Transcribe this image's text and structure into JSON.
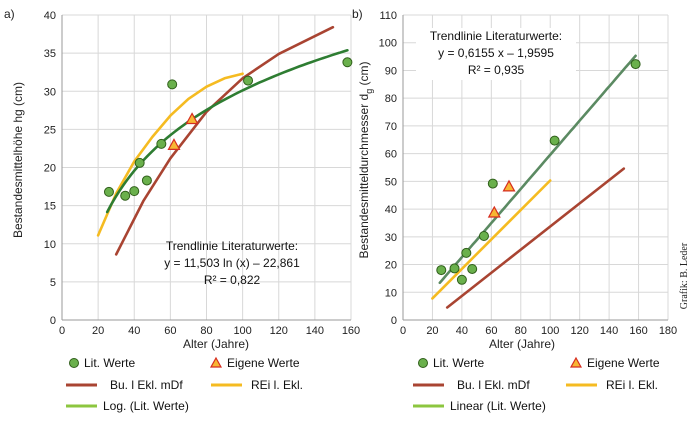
{
  "credit": "Grafik: B. Leder",
  "legend": {
    "lit": "Lit. Werte",
    "eigene": "Eigene Werte",
    "bu": "Bu. l Ekl. mDf",
    "rei": "REi l. Ekl.",
    "log": "Log. (Lit. Werte)",
    "linear": "Linear (Lit. Werte)"
  },
  "colors": {
    "lit_fill": "#6ab04c",
    "lit_stroke": "#2f5e1a",
    "eigene_fill": "#f7b733",
    "eigene_stroke": "#d62d20",
    "bu": "#a94432",
    "rei": "#f5bb21",
    "fit": "#2e7d32",
    "fit_legend": "#8cc63f",
    "fit_b": "#5b8a62",
    "grid": "#d8d8d8"
  },
  "chart_data": [
    {
      "panel": "a)",
      "type": "scatter",
      "xlabel": "Alter (Jahre)",
      "ylabel": "Bestandesmittelhöhe hg (cm)",
      "xlim": [
        0,
        160
      ],
      "ylim": [
        0,
        40
      ],
      "xticks": [
        "0",
        "20",
        "40",
        "60",
        "80",
        "100",
        "120",
        "140",
        "160"
      ],
      "yticks": [
        "0",
        "5",
        "10",
        "15",
        "20",
        "25",
        "30",
        "35",
        "40"
      ],
      "grid": true,
      "trendline_text": [
        "Trendlinie Literaturwerte:",
        "y = 11,503 ln (x) – 22,861",
        "R² = 0,822"
      ],
      "lit_points": [
        [
          26,
          16.8
        ],
        [
          35,
          16.3
        ],
        [
          40,
          16.9
        ],
        [
          43,
          20.6
        ],
        [
          47,
          18.3
        ],
        [
          55,
          23.1
        ],
        [
          61,
          30.9
        ],
        [
          103,
          31.4
        ],
        [
          158,
          33.8
        ]
      ],
      "eigene_points": [
        [
          62,
          22.9
        ],
        [
          72,
          26.3
        ]
      ],
      "bu_line": [
        [
          30,
          8.6
        ],
        [
          45,
          15.6
        ],
        [
          60,
          21.2
        ],
        [
          80,
          27.3
        ],
        [
          100,
          31.7
        ],
        [
          120,
          34.9
        ],
        [
          150,
          38.4
        ]
      ],
      "rei_line": [
        [
          20,
          11.1
        ],
        [
          30,
          16.6
        ],
        [
          40,
          20.8
        ],
        [
          50,
          24.0
        ],
        [
          60,
          26.8
        ],
        [
          70,
          29.0
        ],
        [
          80,
          30.6
        ],
        [
          90,
          31.7
        ],
        [
          100,
          32.3
        ]
      ],
      "fit": {
        "type": "log",
        "a": 11.503,
        "b": -22.861,
        "x_range": [
          25,
          158
        ]
      }
    },
    {
      "panel": "b)",
      "type": "scatter",
      "xlabel": "Alter (Jahre)",
      "ylabel": "Bestandesmittel­durchmesser d",
      "ylabel_sub": "g",
      "ylabel_unit": " (cm)",
      "xlim": [
        0,
        180
      ],
      "ylim": [
        0,
        110
      ],
      "xticks": [
        "0",
        "20",
        "40",
        "60",
        "80",
        "100",
        "120",
        "140",
        "160",
        "180"
      ],
      "yticks": [
        "0",
        "10",
        "20",
        "30",
        "40",
        "50",
        "60",
        "70",
        "80",
        "90",
        "100",
        "110"
      ],
      "grid": true,
      "trendline_text": [
        "Trendlinie Literaturwerte:",
        "y = 0,6155 x – 1,9595",
        "R² = 0,935"
      ],
      "lit_points": [
        [
          26,
          18.0
        ],
        [
          35,
          18.6
        ],
        [
          40,
          14.5
        ],
        [
          43,
          24.2
        ],
        [
          47,
          18.4
        ],
        [
          55,
          30.3
        ],
        [
          61,
          49.2
        ],
        [
          103,
          64.7
        ],
        [
          158,
          92.3
        ]
      ],
      "eigene_points": [
        [
          62,
          38.6
        ],
        [
          72,
          48.0
        ]
      ],
      "bu_line": [
        [
          30,
          4.5
        ],
        [
          150,
          54.6
        ]
      ],
      "rei_line": [
        [
          20,
          7.8
        ],
        [
          100,
          50.3
        ]
      ],
      "fit": {
        "type": "linear",
        "a": 0.6155,
        "b": -1.9595,
        "x_range": [
          25,
          158
        ]
      }
    }
  ]
}
